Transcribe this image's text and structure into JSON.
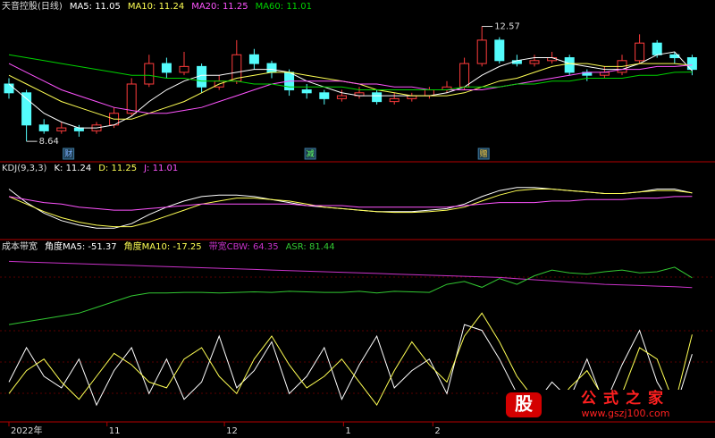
{
  "chart_data": [
    {
      "type": "candlestick",
      "title": "天音控股(日线)",
      "ylim": [
        8.4,
        12.8
      ],
      "up_color": "#ff3c3c",
      "down_color": "#54fcfc",
      "open": [
        10.6,
        10.3,
        9.2,
        9.0,
        9.1,
        9.0,
        9.2,
        9.6,
        10.6,
        11.3,
        11.0,
        11.2,
        10.5,
        10.7,
        11.6,
        11.3,
        11.0,
        10.4,
        10.3,
        10.1,
        10.2,
        10.3,
        10.0,
        10.1,
        10.2,
        10.4,
        10.5,
        11.3,
        12.1,
        11.4,
        11.3,
        11.4,
        11.5,
        11.0,
        10.9,
        11.0,
        11.4,
        12.0,
        11.6,
        11.5
      ],
      "high": [
        10.8,
        10.4,
        9.4,
        9.3,
        9.2,
        9.3,
        9.8,
        10.8,
        11.6,
        11.5,
        11.7,
        11.3,
        10.9,
        12.1,
        11.8,
        11.4,
        11.1,
        10.6,
        10.4,
        10.4,
        10.5,
        10.4,
        10.3,
        10.3,
        10.5,
        10.7,
        11.5,
        12.57,
        12.2,
        11.6,
        11.6,
        11.7,
        11.6,
        11.1,
        11.2,
        11.6,
        12.3,
        12.1,
        11.7,
        11.6
      ],
      "low": [
        10.1,
        8.64,
        8.9,
        8.9,
        8.8,
        8.9,
        9.1,
        9.5,
        10.5,
        10.8,
        10.9,
        10.3,
        10.4,
        10.6,
        11.1,
        10.8,
        10.2,
        10.1,
        9.9,
        10.0,
        10.1,
        9.9,
        9.9,
        10.0,
        10.1,
        10.3,
        10.4,
        11.2,
        11.3,
        11.2,
        11.2,
        11.3,
        10.9,
        10.7,
        10.8,
        10.9,
        11.3,
        11.5,
        11.3,
        10.9
      ],
      "close": [
        10.3,
        9.2,
        9.0,
        9.1,
        9.0,
        9.2,
        9.6,
        10.6,
        11.3,
        11.0,
        11.2,
        10.5,
        10.7,
        11.6,
        11.3,
        11.0,
        10.4,
        10.3,
        10.1,
        10.2,
        10.3,
        10.0,
        10.1,
        10.2,
        10.4,
        10.5,
        11.3,
        12.1,
        11.4,
        11.3,
        11.4,
        11.5,
        11.0,
        10.9,
        11.0,
        11.4,
        12.0,
        11.6,
        11.5,
        11.1
      ],
      "annotations": [
        {
          "value": 12.57,
          "label": "12.57"
        },
        {
          "value": 8.64,
          "label": "8.64"
        }
      ],
      "events": [
        {
          "label": "财",
          "x": 3.4
        },
        {
          "label": "减",
          "x": 17.2
        },
        {
          "label": "赠",
          "x": 27.1
        }
      ],
      "series": [
        {
          "name": "MA5: 11.05",
          "color": "#ffffff",
          "values": [
            10.6,
            10.1,
            9.6,
            9.3,
            9.1,
            9.1,
            9.2,
            9.5,
            10.0,
            10.4,
            10.7,
            10.9,
            10.9,
            11.0,
            11.1,
            11.1,
            11.0,
            10.7,
            10.5,
            10.3,
            10.2,
            10.2,
            10.2,
            10.2,
            10.2,
            10.3,
            10.5,
            10.9,
            11.2,
            11.4,
            11.5,
            11.5,
            11.3,
            11.2,
            11.1,
            11.1,
            11.3,
            11.6,
            11.7,
            11.05
          ]
        },
        {
          "name": "MA10: 11.24",
          "color": "#ffff54",
          "values": [
            10.9,
            10.6,
            10.3,
            10.0,
            9.8,
            9.6,
            9.4,
            9.4,
            9.6,
            9.8,
            10.0,
            10.3,
            10.6,
            10.8,
            10.9,
            11.0,
            11.0,
            10.9,
            10.8,
            10.7,
            10.6,
            10.4,
            10.3,
            10.2,
            10.2,
            10.2,
            10.3,
            10.5,
            10.7,
            10.8,
            11.0,
            11.2,
            11.3,
            11.3,
            11.2,
            11.2,
            11.3,
            11.3,
            11.3,
            11.24
          ]
        },
        {
          "name": "MA20: 11.25",
          "color": "#ff54ff",
          "values": [
            11.3,
            11.0,
            10.7,
            10.4,
            10.2,
            10.0,
            9.8,
            9.7,
            9.6,
            9.6,
            9.7,
            9.8,
            10.0,
            10.2,
            10.4,
            10.6,
            10.7,
            10.7,
            10.7,
            10.7,
            10.6,
            10.6,
            10.5,
            10.5,
            10.4,
            10.4,
            10.4,
            10.4,
            10.5,
            10.6,
            10.7,
            10.8,
            10.9,
            11.0,
            11.0,
            11.1,
            11.1,
            11.2,
            11.2,
            11.25
          ]
        },
        {
          "name": "MA60: 11.01",
          "color": "#00d200",
          "values": [
            11.6,
            11.5,
            11.4,
            11.3,
            11.2,
            11.1,
            11.0,
            10.9,
            10.9,
            10.8,
            10.8,
            10.7,
            10.7,
            10.7,
            10.6,
            10.6,
            10.5,
            10.5,
            10.5,
            10.5,
            10.4,
            10.4,
            10.4,
            10.4,
            10.4,
            10.4,
            10.5,
            10.5,
            10.5,
            10.6,
            10.6,
            10.7,
            10.7,
            10.8,
            10.8,
            10.8,
            10.9,
            10.9,
            11.0,
            11.01
          ]
        }
      ]
    },
    {
      "type": "line",
      "title": "KDJ(9,3,3)",
      "ylim": [
        8.5,
        12.3
      ],
      "series": [
        {
          "name": "K: 11.24",
          "color": "#ffffff",
          "values": [
            11.5,
            10.6,
            9.9,
            9.4,
            9.1,
            8.9,
            8.9,
            9.2,
            9.8,
            10.3,
            10.7,
            11.0,
            11.1,
            11.1,
            11.0,
            10.8,
            10.6,
            10.4,
            10.3,
            10.2,
            10.1,
            10.0,
            10.0,
            10.0,
            10.1,
            10.2,
            10.5,
            11.0,
            11.4,
            11.6,
            11.6,
            11.5,
            11.4,
            11.3,
            11.2,
            11.2,
            11.3,
            11.5,
            11.5,
            11.24
          ]
        },
        {
          "name": "D: 11.25",
          "color": "#ffff54",
          "values": [
            11.0,
            10.5,
            10.0,
            9.6,
            9.3,
            9.1,
            9.0,
            9.0,
            9.3,
            9.7,
            10.1,
            10.5,
            10.7,
            10.9,
            10.9,
            10.8,
            10.7,
            10.5,
            10.3,
            10.2,
            10.1,
            10.0,
            9.95,
            9.95,
            10.0,
            10.1,
            10.3,
            10.7,
            11.1,
            11.4,
            11.5,
            11.5,
            11.4,
            11.3,
            11.2,
            11.2,
            11.3,
            11.4,
            11.4,
            11.25
          ]
        },
        {
          "name": "J: 11.01",
          "color": "#ff54ff",
          "values": [
            11.0,
            10.8,
            10.6,
            10.5,
            10.3,
            10.2,
            10.1,
            10.1,
            10.2,
            10.3,
            10.4,
            10.5,
            10.5,
            10.5,
            10.5,
            10.5,
            10.5,
            10.4,
            10.4,
            10.4,
            10.3,
            10.3,
            10.3,
            10.3,
            10.3,
            10.3,
            10.4,
            10.5,
            10.6,
            10.6,
            10.6,
            10.7,
            10.7,
            10.8,
            10.8,
            10.8,
            10.9,
            10.9,
            11.0,
            11.01
          ]
        }
      ]
    },
    {
      "type": "line",
      "title": "成本带宽",
      "ylim": [
        -160,
        120
      ],
      "xticks": [
        {
          "value": 0,
          "label": "2022年"
        },
        {
          "value": 5.6,
          "label": "11"
        },
        {
          "value": 12.3,
          "label": "12"
        },
        {
          "value": 19.1,
          "label": "1"
        },
        {
          "value": 24.2,
          "label": "2"
        }
      ],
      "series": [
        {
          "name": "角度MA5: -51.37",
          "color": "#ffffff",
          "values": [
            -100,
            -40,
            -90,
            -110,
            -60,
            -140,
            -80,
            -40,
            -120,
            -60,
            -130,
            -100,
            -20,
            -110,
            -80,
            -30,
            -120,
            -90,
            -40,
            -130,
            -70,
            -20,
            -110,
            -80,
            -60,
            -120,
            0,
            -10,
            -60,
            -120,
            -140,
            -100,
            -130,
            -60,
            -140,
            -70,
            -10,
            -100,
            -150,
            -51.37
          ]
        },
        {
          "name": "角度MA10: -17.25",
          "color": "#ffff54",
          "values": [
            -120,
            -80,
            -60,
            -100,
            -130,
            -90,
            -50,
            -70,
            -100,
            -110,
            -60,
            -40,
            -90,
            -120,
            -60,
            -20,
            -70,
            -110,
            -90,
            -60,
            -100,
            -140,
            -80,
            -30,
            -70,
            -100,
            -20,
            20,
            -30,
            -90,
            -130,
            -150,
            -110,
            -80,
            -130,
            -120,
            -40,
            -60,
            -140,
            -17.25
          ]
        },
        {
          "name": "带宽CBW: 64.35",
          "color": "#c832c8",
          "values": [
            110,
            109,
            108,
            107,
            106,
            105,
            104,
            103,
            102,
            101,
            100,
            99,
            98,
            97,
            96,
            95,
            94,
            93,
            92,
            91,
            90,
            89,
            88,
            87,
            86,
            85,
            84,
            83,
            82,
            80,
            78,
            76,
            74,
            72,
            70,
            69,
            68,
            67,
            66,
            64.35
          ]
        },
        {
          "name": "ASR: 81.44",
          "color": "#32c832",
          "values": [
            0,
            5,
            10,
            15,
            20,
            30,
            40,
            50,
            55,
            55,
            56,
            56,
            55,
            56,
            57,
            56,
            58,
            57,
            56,
            56,
            58,
            55,
            58,
            57,
            56,
            70,
            75,
            65,
            80,
            70,
            85,
            95,
            90,
            88,
            92,
            95,
            90,
            92,
            100,
            81.44
          ]
        }
      ]
    }
  ],
  "watermark": {
    "icon": "股",
    "text": "公式之家",
    "url": "www.gszj100.com"
  }
}
